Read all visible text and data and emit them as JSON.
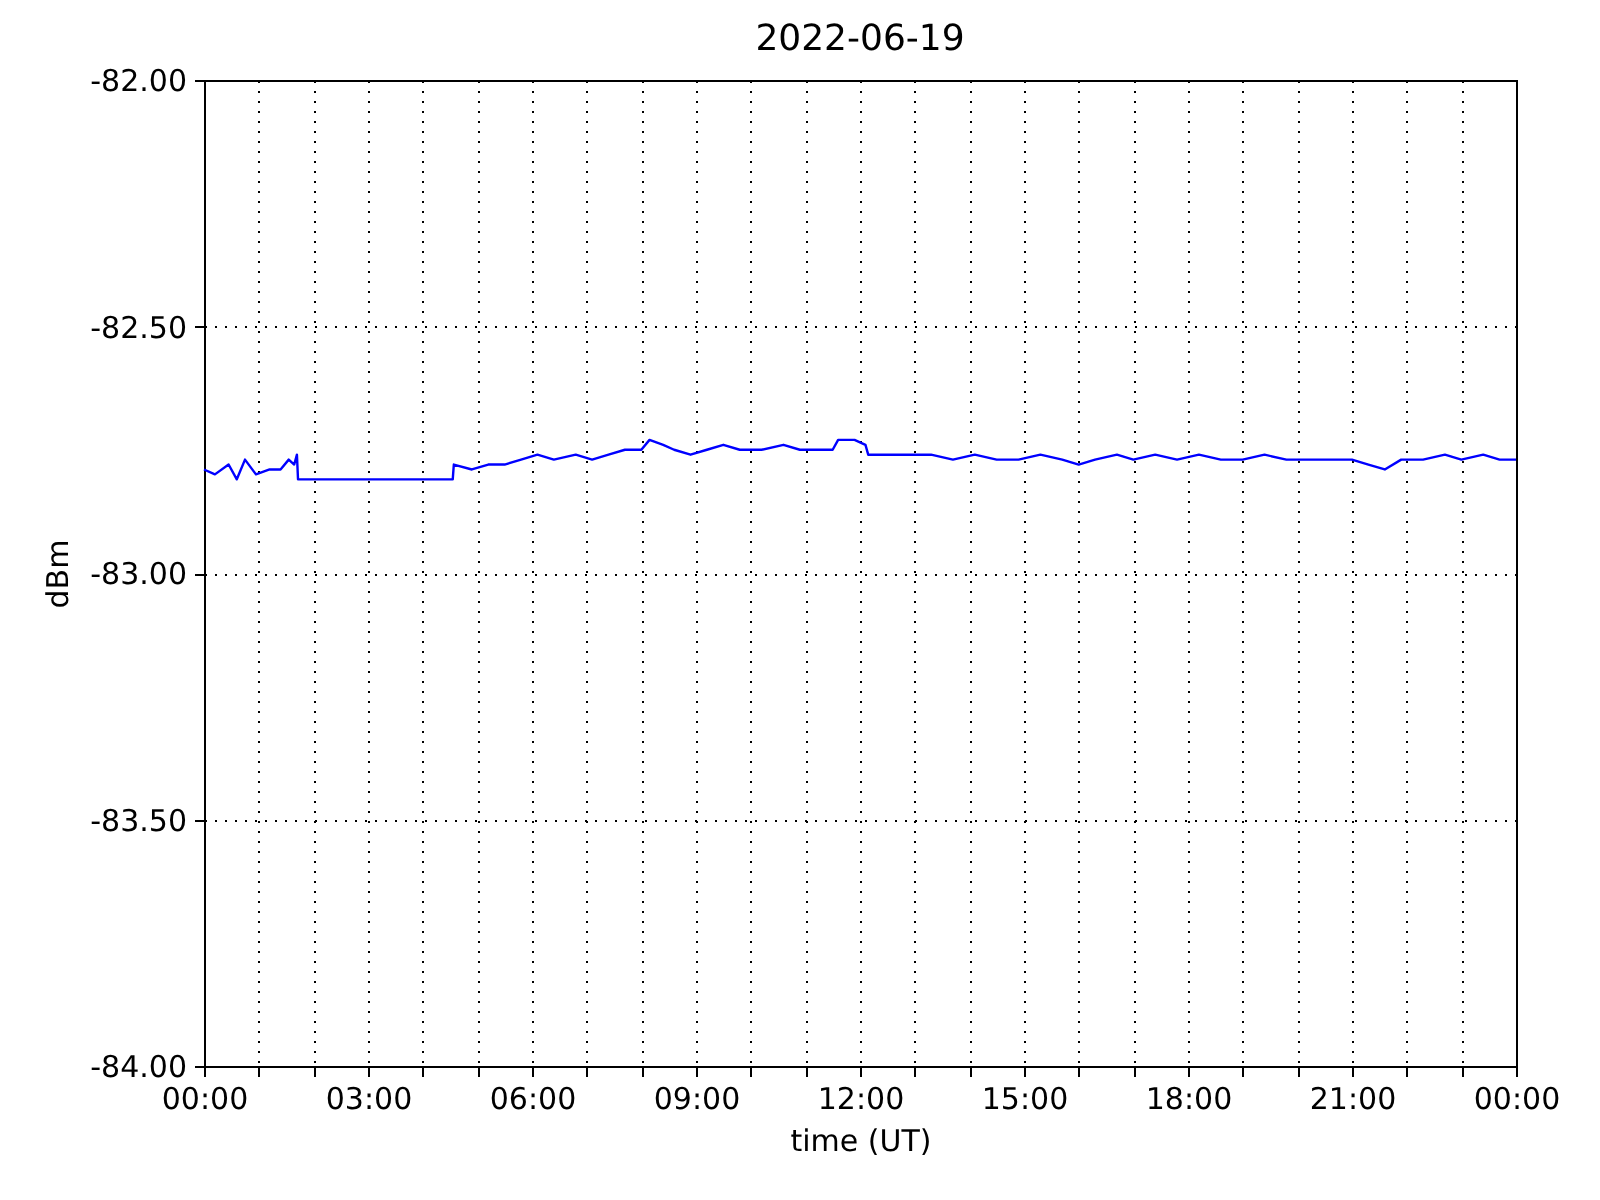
{
  "chart_data": {
    "type": "line",
    "title": "2022-06-19",
    "xlabel": "time (UT)",
    "ylabel": "dBm",
    "x": [
      0.0,
      0.2,
      0.45,
      0.6,
      0.75,
      0.95,
      1.2,
      1.4,
      1.55,
      1.65,
      1.7,
      1.72,
      4.55,
      4.57,
      4.9,
      5.2,
      5.5,
      5.8,
      6.1,
      6.4,
      6.8,
      7.1,
      7.4,
      7.7,
      8.0,
      8.15,
      8.4,
      8.6,
      8.9,
      9.2,
      9.5,
      9.8,
      10.2,
      10.6,
      10.9,
      11.2,
      11.5,
      11.6,
      11.9,
      12.1,
      12.15,
      12.5,
      12.9,
      13.3,
      13.7,
      14.1,
      14.5,
      14.9,
      15.3,
      15.7,
      16.0,
      16.3,
      16.7,
      17.0,
      17.4,
      17.8,
      18.2,
      18.6,
      19.0,
      19.4,
      19.8,
      20.2,
      20.6,
      21.0,
      21.3,
      21.6,
      21.9,
      22.3,
      22.7,
      23.0,
      23.4,
      23.7,
      24.0
    ],
    "series": [
      {
        "color": "#0000ff",
        "values": [
          -82.79,
          -82.8,
          -82.78,
          -82.81,
          -82.77,
          -82.8,
          -82.79,
          -82.79,
          -82.77,
          -82.78,
          -82.76,
          -82.81,
          -82.81,
          -82.78,
          -82.79,
          -82.78,
          -82.78,
          -82.77,
          -82.76,
          -82.77,
          -82.76,
          -82.77,
          -82.76,
          -82.75,
          -82.75,
          -82.73,
          -82.74,
          -82.75,
          -82.76,
          -82.75,
          -82.74,
          -82.75,
          -82.75,
          -82.74,
          -82.75,
          -82.75,
          -82.75,
          -82.73,
          -82.73,
          -82.74,
          -82.76,
          -82.76,
          -82.76,
          -82.76,
          -82.77,
          -82.76,
          -82.77,
          -82.77,
          -82.76,
          -82.77,
          -82.78,
          -82.77,
          -82.76,
          -82.77,
          -82.76,
          -82.77,
          -82.76,
          -82.77,
          -82.77,
          -82.76,
          -82.77,
          -82.77,
          -82.77,
          -82.77,
          -82.78,
          -82.79,
          -82.77,
          -82.77,
          -82.76,
          -82.77,
          -82.76,
          -82.77,
          -82.77
        ]
      }
    ],
    "xlim": [
      0,
      24
    ],
    "xticks": [
      {
        "value": 0,
        "label": "00:00"
      },
      {
        "value": 1,
        "label": null
      },
      {
        "value": 2,
        "label": null
      },
      {
        "value": 3,
        "label": "03:00"
      },
      {
        "value": 4,
        "label": null
      },
      {
        "value": 5,
        "label": null
      },
      {
        "value": 6,
        "label": "06:00"
      },
      {
        "value": 7,
        "label": null
      },
      {
        "value": 8,
        "label": null
      },
      {
        "value": 9,
        "label": "09:00"
      },
      {
        "value": 10,
        "label": null
      },
      {
        "value": 11,
        "label": null
      },
      {
        "value": 12,
        "label": "12:00"
      },
      {
        "value": 13,
        "label": null
      },
      {
        "value": 14,
        "label": null
      },
      {
        "value": 15,
        "label": "15:00"
      },
      {
        "value": 16,
        "label": null
      },
      {
        "value": 17,
        "label": null
      },
      {
        "value": 18,
        "label": "18:00"
      },
      {
        "value": 19,
        "label": null
      },
      {
        "value": 20,
        "label": null
      },
      {
        "value": 21,
        "label": "21:00"
      },
      {
        "value": 22,
        "label": null
      },
      {
        "value": 23,
        "label": null
      },
      {
        "value": 24,
        "label": "00:00"
      }
    ],
    "ylim": [
      -84,
      -82
    ],
    "yticks": [
      {
        "value": -84,
        "label": "-84.00"
      },
      {
        "value": -83.5,
        "label": "-83.50"
      },
      {
        "value": -83,
        "label": "-83.00"
      },
      {
        "value": -82.5,
        "label": "-82.50"
      },
      {
        "value": -82,
        "label": "-82.00"
      }
    ],
    "grid": true,
    "line_style": "solid",
    "marker": "none"
  }
}
